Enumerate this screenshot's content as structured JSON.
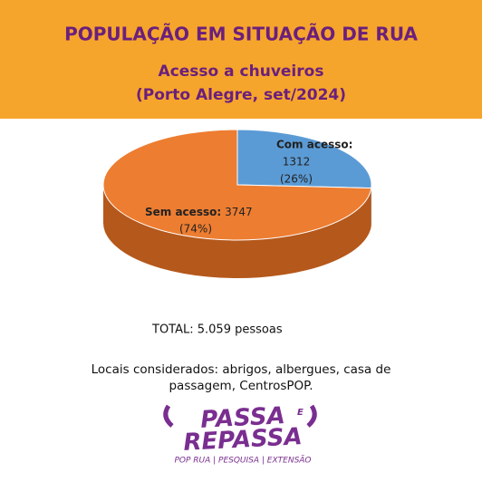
{
  "chart_data": {
    "type": "pie",
    "title": "POPULAÇÃO EM SITUAÇÃO DE RUA",
    "subtitle": [
      "Acesso a chuveiros",
      "(Porto Alegre, set/2024)"
    ],
    "categories": [
      "Com acesso:",
      "Sem acesso:"
    ],
    "values": [
      1312,
      3747
    ],
    "percent_labels": [
      "(26%)",
      "(74%)"
    ],
    "colors": [
      "#5b9bd5",
      "#ed7d31"
    ],
    "side_colors": [
      "#3f6f9c",
      "#b5581b"
    ],
    "total": "TOTAL: 5.059 pessoas",
    "note": [
      "Locais considerados: abrigos, albergues, casa de",
      "passagem, CentrosPOP."
    ]
  },
  "logo": {
    "line1": "PASSA",
    "small": "E",
    "line2": "REPASSA",
    "tagline": "POP RUA | PESQUISA | EXTENSÃO"
  }
}
